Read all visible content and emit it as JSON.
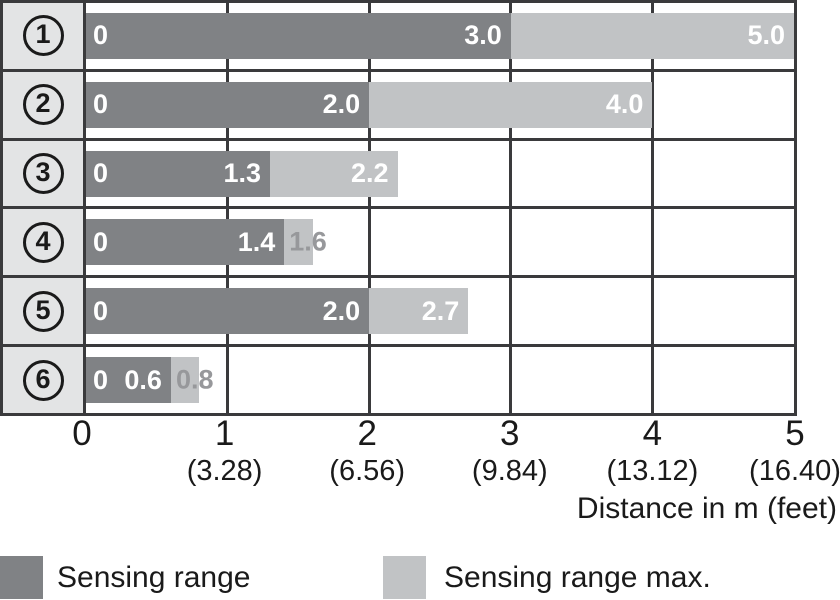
{
  "chart_data": {
    "type": "bar",
    "orientation": "horizontal",
    "title": "",
    "xlabel": "Distance in m (feet)",
    "ylabel": "",
    "xlim": [
      0,
      5
    ],
    "grid": true,
    "legend_position": "bottom",
    "categories": [
      "1",
      "2",
      "3",
      "4",
      "5",
      "6"
    ],
    "series": [
      {
        "name": "Sensing range",
        "values": [
          3.0,
          2.0,
          1.3,
          1.4,
          2.0,
          0.6
        ]
      },
      {
        "name": "Sensing range max.",
        "values": [
          5.0,
          4.0,
          2.2,
          1.6,
          2.7,
          0.8
        ]
      }
    ],
    "rows": [
      {
        "id": "1",
        "zero_label": "0",
        "sensing": 3.0,
        "sensing_label": "3.0",
        "max": 5.0,
        "max_label": "5.0",
        "max_label_style": "inside-white"
      },
      {
        "id": "2",
        "zero_label": "0",
        "sensing": 2.0,
        "sensing_label": "2.0",
        "max": 4.0,
        "max_label": "4.0",
        "max_label_style": "inside-white"
      },
      {
        "id": "3",
        "zero_label": "0",
        "sensing": 1.3,
        "sensing_label": "1.3",
        "max": 2.2,
        "max_label": "2.2",
        "max_label_style": "inside-white"
      },
      {
        "id": "4",
        "zero_label": "0",
        "sensing": 1.4,
        "sensing_label": "1.4",
        "max": 1.6,
        "max_label": "1.6",
        "max_label_style": "overflow-gray"
      },
      {
        "id": "5",
        "zero_label": "0",
        "sensing": 2.0,
        "sensing_label": "2.0",
        "max": 2.7,
        "max_label": "2.7",
        "max_label_style": "inside-white"
      },
      {
        "id": "6",
        "zero_label": "0",
        "sensing": 0.6,
        "sensing_label": "0.6",
        "max": 0.8,
        "max_label": "0.8",
        "max_label_style": "overflow-gray"
      }
    ],
    "x_ticks": [
      {
        "m": "0",
        "feet": ""
      },
      {
        "m": "1",
        "feet": "(3.28)"
      },
      {
        "m": "2",
        "feet": "(6.56)"
      },
      {
        "m": "3",
        "feet": "(9.84)"
      },
      {
        "m": "4",
        "feet": "(13.12)"
      },
      {
        "m": "5",
        "feet": "(16.40)"
      }
    ],
    "legend": [
      {
        "label": "Sensing range",
        "color": "#808285"
      },
      {
        "label": "Sensing range max.",
        "color": "#c1c3c5"
      }
    ],
    "colors": {
      "sensing": "#808285",
      "sensing_max": "#c1c3c5",
      "row_header_bg": "#e3e4e5",
      "grid_border": "#3a3a3c",
      "overflow_label": "#97989b",
      "bar_label": "#ffffff",
      "axis_text": "#1a1a1a"
    }
  }
}
